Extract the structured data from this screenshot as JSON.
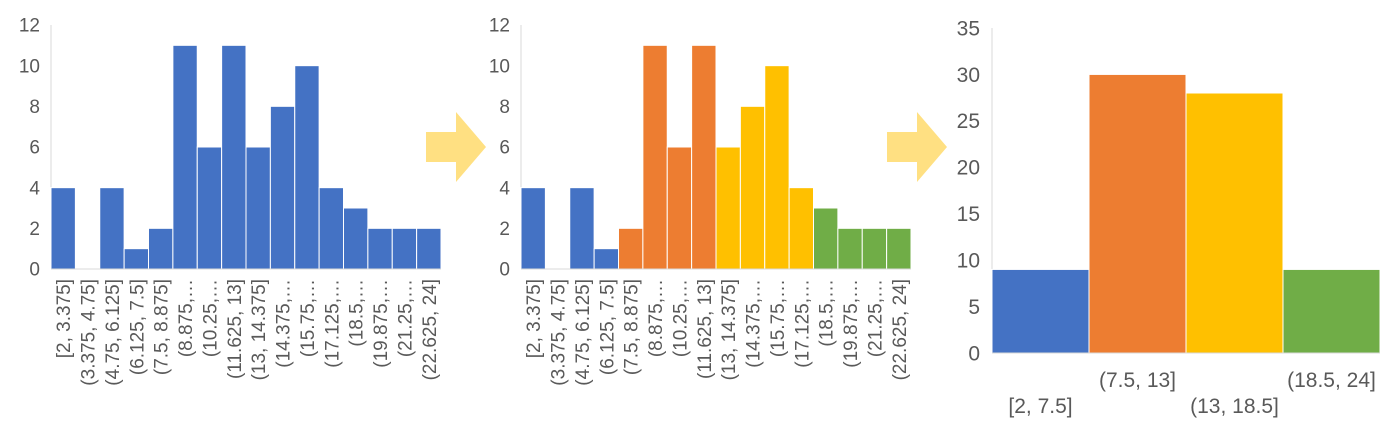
{
  "colors": {
    "blue": "#4472C4",
    "orange": "#ED7D31",
    "yellow": "#FFC000",
    "green": "#70AD47",
    "arrow": "#FFE082",
    "axis": "#D9D9D9",
    "text": "#595959"
  },
  "arrows": [
    {
      "icon": "right-arrow-icon"
    },
    {
      "icon": "right-arrow-icon"
    }
  ],
  "chart_data": [
    {
      "type": "bar",
      "categories": [
        "[2, 3.375]",
        "(3.375, 4.75]",
        "(4.75, 6.125]",
        "(6.125, 7.5]",
        "(7.5, 8.875]",
        "(8.875,…",
        "(10.25,…",
        "(11.625, 13]",
        "(13, 14.375]",
        "(14.375,…",
        "(15.75,…",
        "(17.125,…",
        "(18.5,…",
        "(19.875,…",
        "(21.25,…",
        "(22.625, 24]"
      ],
      "values": [
        4,
        0,
        4,
        1,
        2,
        11,
        6,
        11,
        6,
        8,
        10,
        4,
        3,
        2,
        2,
        2
      ],
      "bar_colors": [
        "blue",
        "blue",
        "blue",
        "blue",
        "blue",
        "blue",
        "blue",
        "blue",
        "blue",
        "blue",
        "blue",
        "blue",
        "blue",
        "blue",
        "blue",
        "blue"
      ],
      "yticks": [
        "0",
        "2",
        "4",
        "6",
        "8",
        "10",
        "12"
      ],
      "ylim": [
        0,
        12
      ],
      "grid": false
    },
    {
      "type": "bar",
      "categories": [
        "[2, 3.375]",
        "(3.375, 4.75]",
        "(4.75, 6.125]",
        "(6.125, 7.5]",
        "(7.5, 8.875]",
        "(8.875,…",
        "(10.25,…",
        "(11.625, 13]",
        "(13, 14.375]",
        "(14.375,…",
        "(15.75,…",
        "(17.125,…",
        "(18.5,…",
        "(19.875,…",
        "(21.25,…",
        "(22.625, 24]"
      ],
      "values": [
        4,
        0,
        4,
        1,
        2,
        11,
        6,
        11,
        6,
        8,
        10,
        4,
        3,
        2,
        2,
        2
      ],
      "bar_colors": [
        "blue",
        "blue",
        "blue",
        "blue",
        "orange",
        "orange",
        "orange",
        "orange",
        "yellow",
        "yellow",
        "yellow",
        "yellow",
        "green",
        "green",
        "green",
        "green"
      ],
      "yticks": [
        "0",
        "2",
        "4",
        "6",
        "8",
        "10",
        "12"
      ],
      "ylim": [
        0,
        12
      ],
      "grid": false
    },
    {
      "type": "bar",
      "categories": [
        "[2, 7.5]",
        "(7.5, 13]",
        "(13, 18.5]",
        "(18.5, 24]"
      ],
      "values": [
        9,
        30,
        28,
        9
      ],
      "bar_colors": [
        "blue",
        "orange",
        "yellow",
        "green"
      ],
      "yticks": [
        "0",
        "5",
        "10",
        "15",
        "20",
        "25",
        "30",
        "35"
      ],
      "ylim": [
        0,
        35
      ],
      "grid": false
    }
  ]
}
